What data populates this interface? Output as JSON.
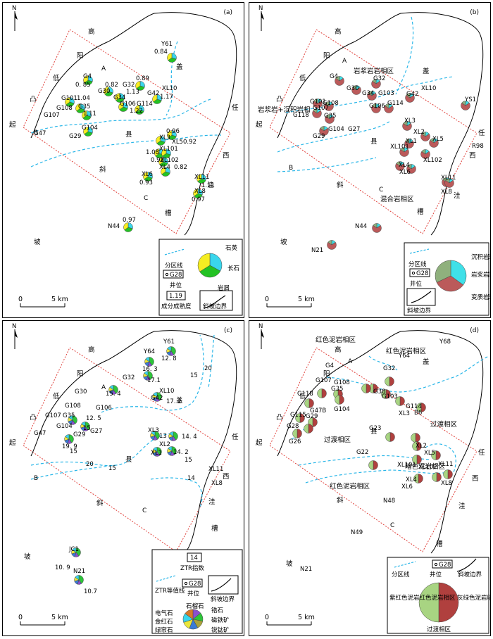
{
  "common": {
    "north": "N",
    "scale_zero": "0",
    "scale_km": "5 km",
    "region_words": {
      "gao": "高",
      "yang": "阳",
      "di": "低",
      "tu": "凸",
      "qi": "起",
      "xie": "斜",
      "po": "坡",
      "gai": "盖",
      "xian": "县",
      "ren": "任",
      "xi": "西",
      "wa": "洼",
      "cao": "槽"
    }
  },
  "colors": {
    "quartz": "#3ad6ec",
    "feldspar": "#23c223",
    "lithic": "#f5ed22",
    "sed": "#3fe0e8",
    "mag": "#bb5a5a",
    "meta": "#8fb07d",
    "zone_line": "#29b6e8",
    "box": "#e0413b",
    "red_mud": "#b0403e",
    "green_mud": "#a8d482"
  },
  "panel_a": {
    "label": "(a)",
    "zones": {
      "A": "A",
      "B": "B",
      "C": "C"
    },
    "wells": [
      {
        "name": "Y61",
        "value": "0.84"
      },
      {
        "name": "G4",
        "value": "0. 85"
      },
      {
        "name": "G32",
        "value": "1.13"
      },
      {
        "name": "0.89",
        "value": ""
      },
      {
        "name": "0.82",
        "value": ""
      },
      {
        "name": "G30",
        "value": ""
      },
      {
        "name": "G34",
        "value": ""
      },
      {
        "name": "G42",
        "value": "1.17"
      },
      {
        "name": "XL10",
        "value": ""
      },
      {
        "name": "G101",
        "value": "1.04"
      },
      {
        "name": "G35",
        "value": ""
      },
      {
        "name": "G108",
        "value": ""
      },
      {
        "name": "G106",
        "value": ""
      },
      {
        "name": "G114",
        "value": "1.22"
      },
      {
        "name": "G107",
        "value": "1.11"
      },
      {
        "name": "G104",
        "value": ""
      },
      {
        "name": "G47",
        "value": ""
      },
      {
        "name": "G29",
        "value": ""
      },
      {
        "name": "XL3",
        "value": "0.96"
      },
      {
        "name": "XL5",
        "value": "0.92"
      },
      {
        "name": "XL101",
        "value": "1.08"
      },
      {
        "name": "XL4",
        "value": "0.92"
      },
      {
        "name": "XL102",
        "value": "0.82"
      },
      {
        "name": "XL6",
        "value": "0.93"
      },
      {
        "name": "XL11",
        "value": "1.11"
      },
      {
        "name": "XL8",
        "value": "0.97"
      },
      {
        "name": "N44",
        "value": "0.97"
      }
    ],
    "legend": {
      "zone_line": "分区线",
      "well_box": "G28",
      "well": "井位",
      "maturity_box": "1.19",
      "maturity": "成分成熟度",
      "slope": "斜坡边界",
      "quartz": "石英",
      "feldspar": "长石",
      "lithic": "岩屑"
    }
  },
  "panel_b": {
    "label": "(b)",
    "zones": {
      "A": "A",
      "B": "B",
      "C": "C"
    },
    "facies": {
      "mag": "岩浆岩岩相区",
      "mix_left": "岩浆岩+沉积岩相",
      "mixed": "混合岩相区"
    },
    "legend": {
      "zone_line": "分区线",
      "well_box": "G28",
      "well": "井位",
      "slope": "斜坡边界",
      "sed": "沉积岩岩屑",
      "mag": "岩浆岩岩屑",
      "meta": "变质岩岩屑"
    }
  },
  "panel_c": {
    "label": "(c)",
    "zones": {
      "A": "A",
      "B": "B",
      "C": "C"
    },
    "legend": {
      "ztr_box": "14",
      "ztr": "ZTR指数",
      "iso": "ZTR等值线",
      "well_box": "G28",
      "well": "井位",
      "slope": "斜坡边界",
      "garnet": "石榴石",
      "tourmaline": "电气石",
      "zircon": "锆石",
      "magnetite": "磁铁矿",
      "rutile": "金红石",
      "epidote": "绿帘石",
      "anatase": "锐钛矿"
    }
  },
  "panel_d": {
    "label": "(d)",
    "zones": {
      "A": "A",
      "B": "B",
      "C": "C"
    },
    "facies": {
      "red_left": "红色泥岩相区",
      "red_top": "红色泥岩相区",
      "trans_right": "过渡相区",
      "trans_mid": "过渡相区",
      "dark_green": "暗色泥岩相区",
      "red_bottom": "红色泥岩相区"
    },
    "legend": {
      "zone_line": "分区线",
      "well_box": "G28",
      "well": "井位",
      "slope": "斜坡边界",
      "left": "紫红色泥岩红色泥岩相区",
      "right": "灰绿色泥岩暗色泥岩相区",
      "bottom": "过渡相区"
    }
  }
}
